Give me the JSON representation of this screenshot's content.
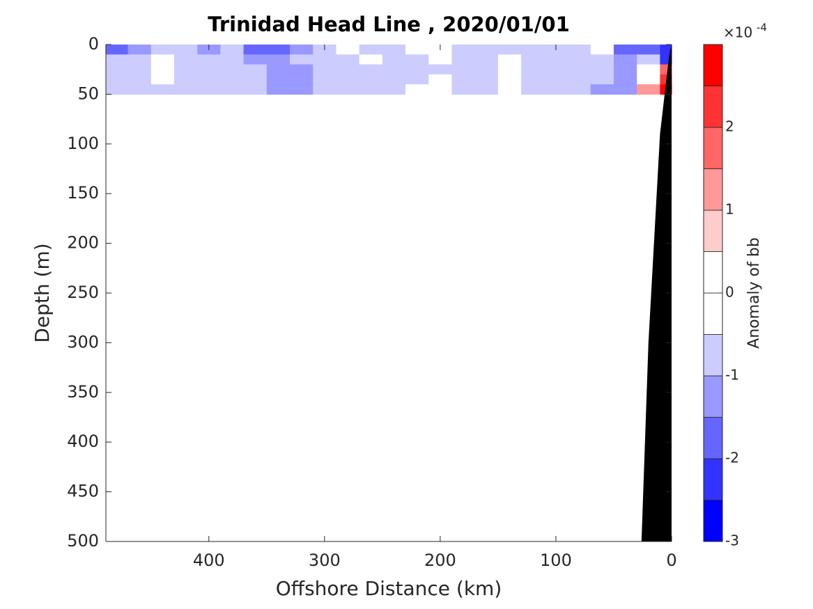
{
  "chart_data": {
    "type": "contourf",
    "title": "Trinidad Head Line , 2020/01/01",
    "xlabel": "Offshore Distance (km)",
    "ylabel": "Depth (m)",
    "xlim": [
      489,
      0
    ],
    "xticks": [
      400,
      300,
      200,
      100,
      0
    ],
    "ylim": [
      0,
      500
    ],
    "yticks": [
      0,
      50,
      100,
      150,
      200,
      250,
      300,
      350,
      400,
      450,
      500
    ],
    "y_direction": "reverse",
    "x": [
      480,
      460,
      440,
      420,
      400,
      380,
      360,
      340,
      320,
      300,
      280,
      260,
      240,
      220,
      200,
      180,
      160,
      140,
      120,
      100,
      80,
      60,
      40,
      20,
      0
    ],
    "depth": [
      5,
      15,
      25,
      35,
      45
    ],
    "cell_width": 20,
    "cell_height": 10,
    "z": [
      [
        -1.8,
        -1.2,
        -0.8,
        -0.8,
        -1.2,
        -0.8,
        -1.8,
        -1.8,
        -1.2,
        -0.7,
        -0.3,
        -0.7,
        -0.7,
        -0.3,
        -0.3,
        -0.8,
        -0.8,
        -0.7,
        -0.8,
        -0.8,
        -0.8,
        -0.3,
        -1.8,
        -1.8,
        -2.2
      ],
      [
        -0.8,
        -0.7,
        -0.3,
        -0.7,
        -0.7,
        -0.8,
        -1.2,
        -1.2,
        -0.7,
        -0.7,
        -0.7,
        -0.3,
        -0.7,
        -0.7,
        -0.3,
        -0.7,
        -0.7,
        -0.3,
        -0.7,
        -0.7,
        -0.7,
        -0.7,
        -1.2,
        -0.8,
        -2.2
      ],
      [
        -0.8,
        -0.7,
        -0.3,
        -0.7,
        -0.7,
        -0.7,
        -0.7,
        -1.2,
        -1.2,
        -0.7,
        -0.7,
        -0.7,
        -0.7,
        -0.7,
        -0.7,
        -0.7,
        -0.7,
        -0.3,
        -0.7,
        -0.7,
        -0.7,
        -0.7,
        -1.2,
        0.3,
        1.5
      ],
      [
        -0.7,
        -0.7,
        -0.3,
        -0.7,
        -0.7,
        -0.7,
        -0.7,
        -1.2,
        -1.2,
        -0.7,
        -0.7,
        -0.7,
        -0.7,
        -0.7,
        -0.3,
        -0.7,
        -0.7,
        -0.3,
        -0.7,
        -0.7,
        -0.7,
        -0.7,
        -1.2,
        0.3,
        2.2
      ],
      [
        -0.7,
        -0.7,
        -0.7,
        -0.7,
        -0.7,
        -0.7,
        -0.7,
        -1.2,
        -1.2,
        -0.7,
        -0.7,
        -0.7,
        -0.7,
        -0.3,
        -0.3,
        -0.7,
        -0.7,
        -0.3,
        -0.7,
        -0.7,
        -0.7,
        -1.2,
        -1.2,
        1.2,
        2.7
      ]
    ],
    "bathymetry": {
      "color": "#000000",
      "x": [
        0,
        2,
        10,
        20,
        26,
        0
      ],
      "depth": [
        0,
        10,
        90,
        300,
        500,
        500
      ]
    },
    "colorbar": {
      "label": "Anomaly of bb",
      "multiplier": "×10",
      "exponent": "-4",
      "clim": [
        -3,
        3
      ],
      "ticks": [
        -3,
        -2,
        -1,
        0,
        1,
        2
      ],
      "levels": [
        -3,
        -2.5,
        -2,
        -1.5,
        -1,
        -0.5,
        0,
        0.5,
        1,
        1.5,
        2,
        2.5,
        3
      ],
      "colors": [
        "#0000ff",
        "#3333ff",
        "#6666ff",
        "#9999ff",
        "#ccccff",
        "#ffffff",
        "#ffffff",
        "#ffcccc",
        "#ff9999",
        "#ff6666",
        "#ff3333",
        "#ff0000"
      ]
    }
  }
}
